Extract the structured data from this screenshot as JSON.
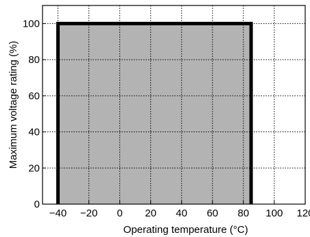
{
  "chart_data": {
    "type": "area",
    "title": "",
    "xlabel": "Operating temperature (°C)",
    "ylabel": "Maximum voltage rating (%)",
    "xlim": [
      -50,
      120
    ],
    "ylim": [
      0,
      110
    ],
    "xticks": [
      -40,
      -20,
      0,
      20,
      40,
      60,
      80,
      100,
      120
    ],
    "xtick_labels": [
      "−40",
      "−20",
      "0",
      "20",
      "40",
      "60",
      "80",
      "100",
      "120"
    ],
    "yticks": [
      0,
      20,
      40,
      60,
      80,
      100
    ],
    "ytick_labels": [
      "0",
      "20",
      "40",
      "60",
      "80",
      "100"
    ],
    "grid": true,
    "grid_style": "dotted",
    "legend": "none",
    "series": [
      {
        "x": [
          -40,
          -40,
          85,
          85
        ],
        "y": [
          0,
          100,
          100,
          0
        ],
        "fill_color": "#b3b3b3",
        "line_color": "#000000"
      }
    ]
  }
}
